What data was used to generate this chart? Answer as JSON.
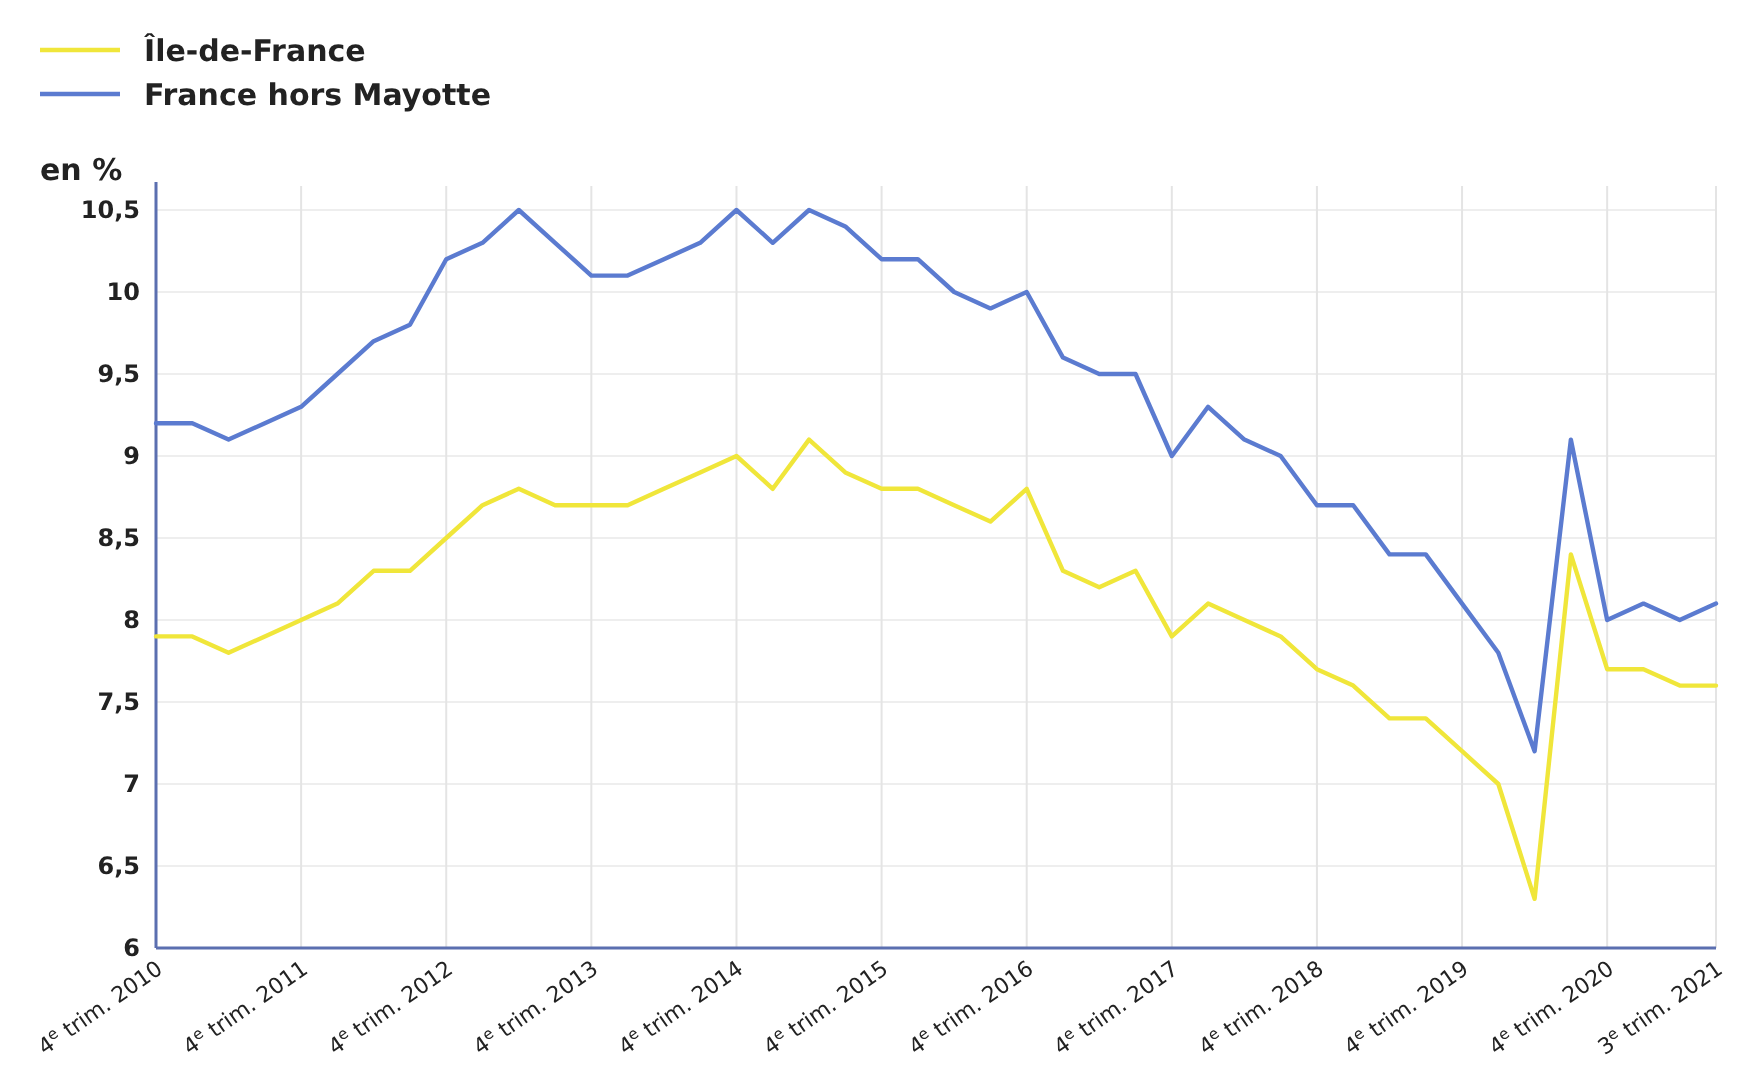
{
  "chart_data": {
    "type": "line",
    "ylabel": "en %",
    "categories": [
      "4$^{e}$ trim. 2010",
      null,
      null,
      null,
      "4$^{e}$ trim. 2011",
      null,
      null,
      null,
      "4$^{e}$ trim. 2012",
      null,
      null,
      null,
      "4$^{e}$ trim. 2013",
      null,
      null,
      null,
      "4$^{e}$ trim. 2014",
      null,
      null,
      null,
      "4$^{e}$ trim. 2015",
      null,
      null,
      null,
      "4$^{e}$ trim. 2016",
      null,
      null,
      null,
      "4$^{e}$ trim. 2017",
      null,
      null,
      null,
      "4$^{e}$ trim. 2018",
      null,
      null,
      null,
      "4$^{e}$ trim. 2019",
      null,
      null,
      null,
      "4$^{e}$ trim. 2020",
      null,
      null,
      "3$^{e}$ trim. 2021"
    ],
    "series": [
      {
        "name": "Île-de-France",
        "color": "#f0e63a",
        "values": [
          7.9,
          7.9,
          7.8,
          7.9,
          8.0,
          8.1,
          8.3,
          8.3,
          8.5,
          8.7,
          8.8,
          8.7,
          8.7,
          8.7,
          8.8,
          8.9,
          9.0,
          8.8,
          9.1,
          8.9,
          8.8,
          8.8,
          8.7,
          8.6,
          8.8,
          8.3,
          8.2,
          8.3,
          7.9,
          8.1,
          8.0,
          7.9,
          7.7,
          7.6,
          7.4,
          7.4,
          7.2,
          7.0,
          6.3,
          8.4,
          7.7,
          7.7,
          7.6,
          7.6
        ]
      },
      {
        "name": "France hors Mayotte",
        "color": "#5b7bd0",
        "values": [
          9.2,
          9.2,
          9.1,
          9.2,
          9.3,
          9.5,
          9.7,
          9.8,
          10.2,
          10.3,
          10.5,
          10.3,
          10.1,
          10.1,
          10.2,
          10.3,
          10.5,
          10.3,
          10.5,
          10.4,
          10.2,
          10.2,
          10.0,
          9.9,
          10.0,
          9.6,
          9.5,
          9.5,
          9.0,
          9.3,
          9.1,
          9.0,
          8.7,
          8.7,
          8.4,
          8.4,
          8.1,
          7.8,
          7.2,
          9.1,
          8.0,
          8.1,
          8.0,
          8.1
        ]
      }
    ],
    "ylim": [
      6,
      10.5
    ],
    "yticks": [
      6,
      {
        "value": 6.5,
        "label": "6,5"
      },
      7,
      {
        "value": 7.5,
        "label": "7,5"
      },
      8,
      {
        "value": 8.5,
        "label": "8,5"
      },
      9,
      {
        "value": 9.5,
        "label": "9,5"
      },
      10,
      {
        "value": 10.5,
        "label": "10,5"
      }
    ],
    "grid": true,
    "legend": "top left",
    "line_style": "solid",
    "marker": "none"
  }
}
